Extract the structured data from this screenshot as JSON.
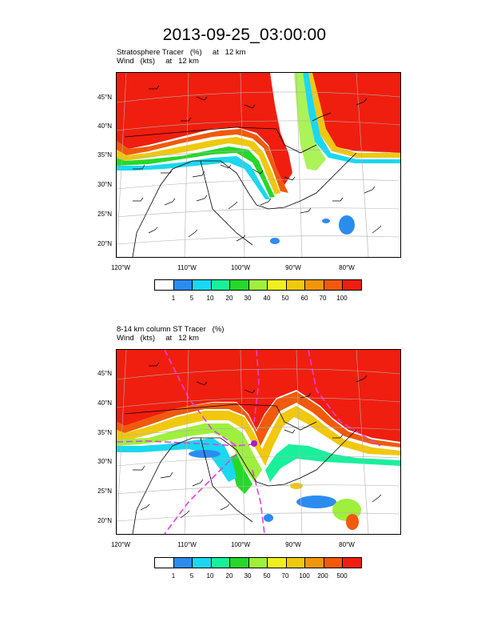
{
  "title": "2013-09-25_03:00:00",
  "panels": [
    {
      "line1": "Stratosphere Tracer   (%)     at   12 km",
      "line2": "Wind   (kts)     at   12 km",
      "lat_labels": [
        "45°N",
        "40°N",
        "35°N",
        "30°N",
        "25°N",
        "20°N"
      ],
      "lon_labels": [
        "120°W",
        "110°W",
        "100°W",
        "90°W",
        "80°W"
      ],
      "legend": {
        "colors": [
          "#ffffff",
          "#2b8cf0",
          "#19d8f0",
          "#19f09c",
          "#25d82a",
          "#9ef03c",
          "#f0f01e",
          "#f0c80e",
          "#f09608",
          "#f05a0a",
          "#f01e0e"
        ],
        "labels": [
          "1",
          "5",
          "10",
          "20",
          "30",
          "40",
          "50",
          "60",
          "70",
          "100"
        ]
      }
    },
    {
      "line1": "8-14 km column ST Tracer   (%)",
      "line2": "Wind   (kts)     at   12 km",
      "lat_labels": [
        "45°N",
        "40°N",
        "35°N",
        "30°N",
        "25°N",
        "20°N"
      ],
      "lon_labels": [
        "120°W",
        "110°W",
        "100°W",
        "90°W",
        "80°W"
      ],
      "legend": {
        "colors": [
          "#ffffff",
          "#2b8cf0",
          "#19d8f0",
          "#19f09c",
          "#25d82a",
          "#9ef03c",
          "#f0f01e",
          "#f0c80e",
          "#f09608",
          "#f05a0a",
          "#f01e0e"
        ],
        "labels": [
          "1",
          "5",
          "10",
          "20",
          "30",
          "50",
          "70",
          "100",
          "200",
          "500"
        ]
      }
    }
  ],
  "colors": {
    "high": "#f01e0e",
    "frontline": "#e040e0",
    "coastline": "#000000"
  }
}
